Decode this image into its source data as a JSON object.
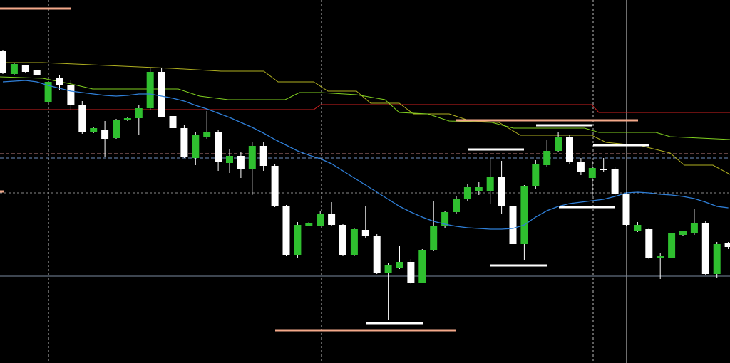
{
  "chart_data": {
    "type": "candlestick",
    "ylim": [
      0,
      510
    ],
    "up_color": "#2fbf2f",
    "down_color": "#ffffff",
    "wick_color": "#ffffff",
    "open": [
      438,
      406,
      418,
      411,
      367,
      400,
      390,
      362,
      324,
      328,
      316,
      341,
      344,
      358,
      409,
      347,
      330,
      288,
      317,
      324,
      281,
      291,
      273,
      305,
      277,
      220,
      152,
      193,
      192,
      210,
      194,
      152,
      187,
      179,
      127,
      134,
      142,
      113,
      159,
      192,
      212,
      230,
      241,
      242,
      262,
      220,
      167,
      248,
      278,
      298,
      317,
      283,
      260,
      273,
      272,
      238,
      185,
      188,
      147,
      148,
      180,
      183,
      197,
      125,
      168
    ],
    "high": [
      440,
      422,
      419,
      412,
      396,
      404,
      398,
      368,
      331,
      340,
      343,
      345,
      362,
      414,
      414,
      350,
      334,
      324,
      354,
      328,
      300,
      296,
      310,
      310,
      279,
      222,
      198,
      198,
      214,
      226,
      195,
      189,
      220,
      181,
      140,
      164,
      146,
      160,
      228,
      214,
      234,
      252,
      254,
      288,
      284,
      222,
      250,
      285,
      314,
      324,
      320,
      288,
      284,
      288,
      276,
      240,
      198,
      190,
      154,
      183,
      186,
      216,
      199,
      170,
      170
    ],
    "low": [
      406,
      404,
      408,
      404,
      366,
      384,
      356,
      322,
      323,
      290,
      315,
      340,
      320,
      356,
      345,
      326,
      288,
      278,
      315,
      270,
      267,
      260,
      236,
      270,
      219,
      150,
      148,
      192,
      192,
      192,
      151,
      151,
      176,
      125,
      60,
      132,
      111,
      112,
      158,
      190,
      210,
      227,
      236,
      223,
      210,
      166,
      145,
      244,
      276,
      297,
      280,
      264,
      234,
      269,
      235,
      193,
      184,
      146,
      118,
      147,
      179,
      180,
      124,
      120,
      160
    ],
    "close": [
      408,
      420,
      409,
      405,
      395,
      390,
      362,
      324,
      330,
      315,
      342,
      344,
      358,
      409,
      345,
      330,
      289,
      320,
      324,
      282,
      291,
      273,
      305,
      277,
      220,
      152,
      194,
      197,
      210,
      194,
      152,
      188,
      179,
      127,
      137,
      142,
      113,
      159,
      192,
      212,
      230,
      247,
      247,
      262,
      220,
      167,
      248,
      279,
      298,
      317,
      283,
      268,
      274,
      271,
      238,
      194,
      194,
      147,
      150,
      182,
      185,
      197,
      125,
      167,
      163
    ],
    "series": [
      {
        "color": "#2f7fd8",
        "values": [
          395,
          396,
          397,
          395,
          390,
          386,
          382,
          380,
          378,
          376,
          375,
          376,
          378,
          378,
          375,
          372,
          368,
          362,
          357,
          351,
          345,
          338,
          331,
          323,
          314,
          306,
          298,
          292,
          287,
          280,
          270,
          260,
          250,
          240,
          230,
          220,
          212,
          205,
          199,
          195,
          192,
          190,
          189,
          188,
          188,
          189,
          194,
          205,
          214,
          220,
          224,
          226,
          228,
          230,
          234,
          239,
          240,
          239,
          237,
          236,
          234,
          231,
          226,
          220,
          218
        ]
      }
    ]
  }
}
